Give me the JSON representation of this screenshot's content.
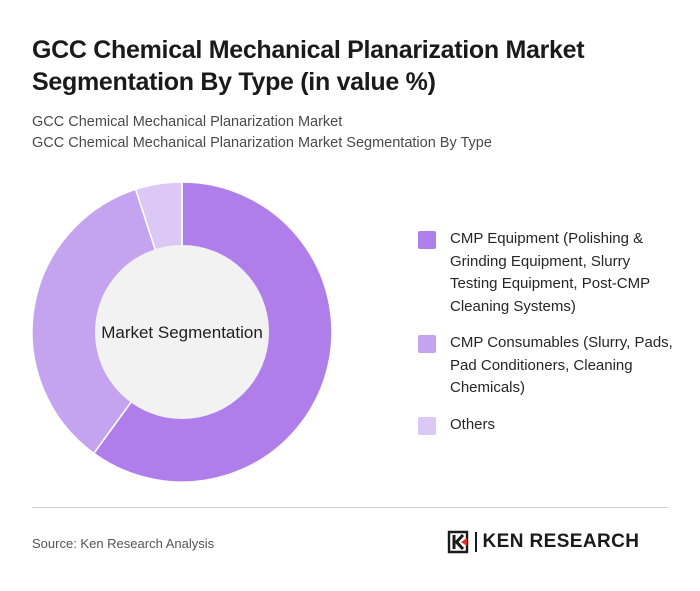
{
  "title": "GCC Chemical Mechanical Planarization Market Segmentation By Type (in value %)",
  "subtitle_1": "GCC Chemical Mechanical Planarization Market",
  "subtitle_2": "GCC Chemical Mechanical Planarization Market Segmentation By Type",
  "source": "Source: Ken Research Analysis",
  "brand": "KEN RESEARCH",
  "brand_icon": "ken-research-logo-icon",
  "chart_data": {
    "type": "pie",
    "variant": "donut",
    "center_label": "Market Segmentation",
    "legend_position": "right",
    "categories": [
      "CMP Equipment (Polishing & Grinding Equipment, Slurry Testing Equipment, Post-CMP Cleaning Systems)",
      "CMP Consumables (Slurry, Pads, Pad Conditioners, Cleaning Chemicals)",
      "Others"
    ],
    "values": [
      60,
      35,
      5
    ],
    "colors": [
      "#b07eea",
      "#c5a4ef",
      "#dcc8f5"
    ],
    "center_color": "#f2f2f2"
  }
}
